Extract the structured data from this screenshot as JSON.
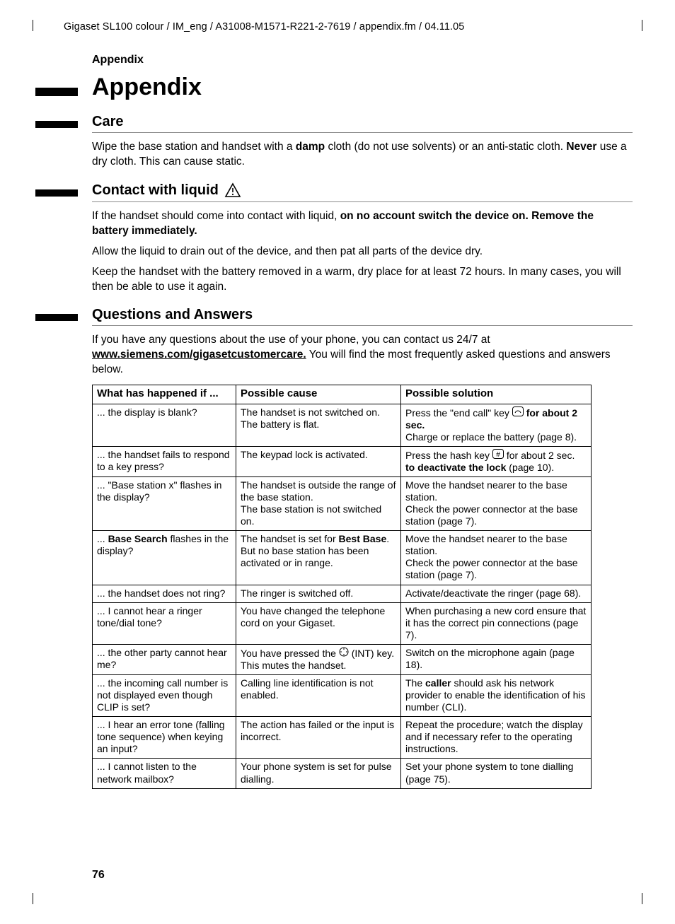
{
  "running_head": "Gigaset SL100 colour / IM_eng / A31008-M1571-R221-2-7619 / appendix.fm / 04.11.05",
  "section_label": "Appendix",
  "title": "Appendix",
  "page_number": "76",
  "link_text": "www.siemens.com/gigasetcustomercare.",
  "sections": {
    "care": {
      "heading": "Care",
      "p1a": "Wipe the base station and handset with a ",
      "p1b": "damp",
      "p1c": " cloth (do not use solvents) or an anti-static cloth. ",
      "p1d": "Never",
      "p1e": " use a dry cloth. This can cause static."
    },
    "liquid": {
      "heading": "Contact with liquid",
      "p1a": "If the handset should come into contact with liquid, ",
      "p1b": "on no account switch the device on. Remove the battery immediately.",
      "p2": "Allow the liquid to drain out of the device, and then pat all parts of the device dry.",
      "p3": "Keep the handset with the battery removed in a warm, dry place for at least 72 hours. In many cases, you will then be able to use it again."
    },
    "qa": {
      "heading": "Questions and Answers",
      "intro_a": "If you have any questions about the use of your phone, you can contact us 24/7 at ",
      "intro_b": " You will find the most frequently asked questions and answers below.",
      "cols": {
        "c1": "What has happened if ...",
        "c2": "Possible cause",
        "c3": "Possible solution"
      },
      "rows": [
        {
          "what": "... the display is blank?",
          "cause_lines": [
            "The handset is not switched on.",
            "The battery is flat."
          ],
          "sol_html": "Press the \"end call\" key <svg width='16' height='14'><rect x='0.5' y='0.5' width='15' height='13' rx='3' fill='none' stroke='#000'/><path d='M4 9 C6 5 10 5 12 9' fill='none' stroke='#000'/></svg> <span class='b'>for about 2 sec.</span><br>Charge or replace the battery (page 8)."
        },
        {
          "what": "... the handset fails to respond to a key press?",
          "cause_lines": [
            "The keypad lock is activated."
          ],
          "sol_html": "Press the hash key <svg width='16' height='14'><rect x='0.5' y='0.5' width='15' height='13' rx='3' fill='none' stroke='#000'/><text x='8' y='11' text-anchor='middle' font-size='10'>#</text></svg> for about 2 sec. <span class='b'>to deactivate the lock</span> (page 10)."
        },
        {
          "what": "... \"Base station x\" flashes in the display?",
          "cause_lines": [
            "The handset is outside the range of the base station.",
            "The base station is not switched on."
          ],
          "sol_html": "Move the handset nearer to the base station.<br>Check the power connector at the base station (page 7)."
        },
        {
          "what_html": "... <span class='b'>Base Search</span> flashes in the display?",
          "cause_html": "The handset is set for <span class='b'>Best Base</span>. But no base station has been activated or in range.",
          "sol_html": "Move the handset nearer to the base station.<br>Check the power connector at the base station (page 7)."
        },
        {
          "what": "... the handset does not ring?",
          "cause_lines": [
            "The ringer is switched off."
          ],
          "sol_html": "Activate/deactivate the ringer (page 68)."
        },
        {
          "what": "... I cannot hear a ringer tone/dial tone?",
          "cause_lines": [
            "You have changed the telephone cord on your Gigaset."
          ],
          "sol_html": "When purchasing a new cord ensure that it has the correct pin connections (page 7)."
        },
        {
          "what": "... the other party cannot hear me?",
          "cause_html": "You have pressed the <svg width='14' height='14'><circle cx='7' cy='7' r='6' fill='none' stroke='#000'/><path d='M7 2 L7 4 M7 10 L7 12 M2 7 L4 7 M10 7 L12 7' stroke='#000'/></svg> (INT) key. This mutes the handset.",
          "sol_html": "Switch on the microphone again (page 18)."
        },
        {
          "what": "... the incoming call number is not displayed even though CLIP is set?",
          "cause_lines": [
            "Calling line identification is not enabled."
          ],
          "sol_html": "The <span class='b'>caller</span> should ask his network provider to enable the identification of his number (CLI)."
        },
        {
          "what": "... I hear an error tone (falling tone sequence) when keying an input?",
          "cause_lines": [
            "The action has failed or the input is incorrect."
          ],
          "sol_html": "Repeat the procedure; watch the display and if necessary refer to the operating instructions."
        },
        {
          "what": "... I cannot listen to the network mailbox?",
          "cause_lines": [
            "Your phone system is set for pulse dialling."
          ],
          "sol_html": "Set your phone system to tone dialling (page 75)."
        }
      ]
    }
  },
  "colors": {
    "text": "#000000",
    "rule": "#8a8a8a",
    "background": "#ffffff"
  }
}
